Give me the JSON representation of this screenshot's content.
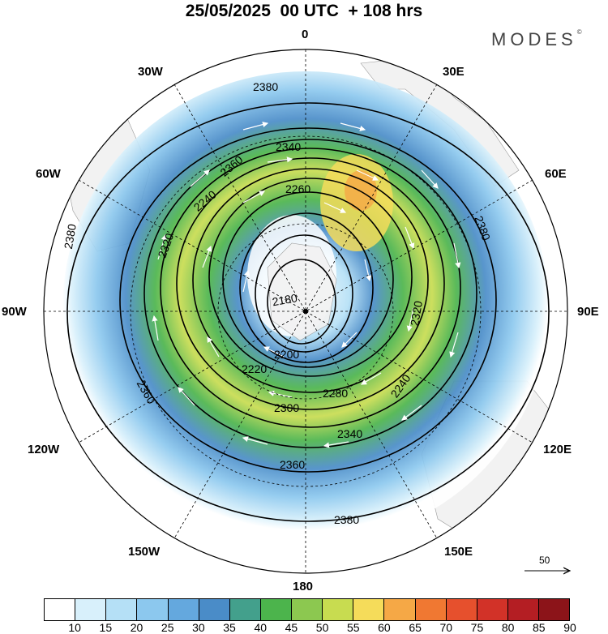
{
  "title": "25/05/2025  00 UTC  + 108 hrs",
  "brand": {
    "text": "MODES",
    "mark": "©"
  },
  "longitude_labels": {
    "n0": "0",
    "n30e": "30E",
    "n60e": "60E",
    "n90e": "90E",
    "n120e": "120E",
    "n150e": "150E",
    "n180": "180",
    "n150w": "150W",
    "n120w": "120W",
    "n90w": "90W",
    "n60w": "60W",
    "n30w": "30W"
  },
  "contour_labels": [
    "2380",
    "2360",
    "2340",
    "2320",
    "2300",
    "2280",
    "2260",
    "2240",
    "2220",
    "2200",
    "2180"
  ],
  "vector_reference": {
    "value": "50"
  },
  "colorbar": {
    "colors": [
      "#ffffff",
      "#d8f0fb",
      "#b5e0f6",
      "#8cc8ee",
      "#64a8de",
      "#4a8cc8",
      "#43a08c",
      "#4cb44c",
      "#8cc850",
      "#c8dc50",
      "#f5dc5a",
      "#f5a846",
      "#f07832",
      "#e6502d",
      "#d23228",
      "#b41e23",
      "#8c1419"
    ],
    "ticks": [
      "10",
      "15",
      "20",
      "25",
      "30",
      "35",
      "40",
      "45",
      "50",
      "55",
      "60",
      "65",
      "70",
      "75",
      "80",
      "85",
      "90"
    ]
  }
}
